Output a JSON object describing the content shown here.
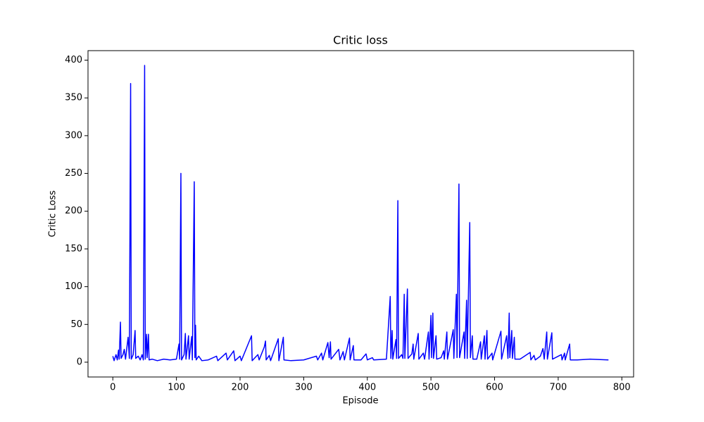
{
  "chart_data": {
    "type": "line",
    "title": "Critic loss",
    "xlabel": "Episode",
    "ylabel": "Critic Loss",
    "x": [
      0,
      2,
      5,
      7,
      9,
      10,
      12,
      13,
      16,
      18,
      20,
      24,
      26,
      28,
      29,
      32,
      35,
      36,
      40,
      43,
      46,
      48,
      50,
      51,
      53,
      54,
      56,
      57,
      62,
      70,
      80,
      90,
      100,
      104,
      105,
      107,
      108,
      112,
      114,
      115,
      119,
      120,
      124,
      125,
      128,
      129,
      130,
      131,
      135,
      140,
      150,
      163,
      165,
      178,
      180,
      190,
      192,
      200,
      202,
      218,
      219,
      228,
      230,
      238,
      240,
      241,
      246,
      248,
      260,
      261,
      268,
      269,
      280,
      300,
      320,
      322,
      328,
      330,
      338,
      340,
      342,
      343,
      355,
      357,
      362,
      364,
      372,
      373,
      378,
      379,
      390,
      398,
      400,
      408,
      410,
      430,
      436,
      437,
      439,
      440,
      445,
      446,
      448,
      449,
      454,
      456,
      458,
      459,
      463,
      464,
      470,
      472,
      473,
      480,
      481,
      488,
      490,
      496,
      497,
      500,
      501,
      503,
      504,
      508,
      509,
      516,
      520,
      521,
      525,
      526,
      535,
      536,
      540,
      541,
      544,
      545,
      552,
      553,
      556,
      557,
      561,
      562,
      565,
      566,
      572,
      578,
      579,
      584,
      585,
      588,
      589,
      596,
      597,
      610,
      611,
      619,
      621,
      623,
      624,
      627,
      628,
      631,
      632,
      640,
      656,
      657,
      662,
      664,
      672,
      676,
      678,
      682,
      683,
      690,
      691,
      705,
      706,
      710,
      711,
      718,
      719,
      730,
      750,
      779
    ],
    "series": [
      {
        "name": "Critic Loss",
        "color": "#0000ff",
        "values": [
          8,
          2,
          10,
          3,
          16,
          4,
          53,
          5,
          10,
          17,
          4,
          33,
          5,
          369,
          4,
          10,
          42,
          5,
          8,
          3,
          10,
          3,
          393,
          4,
          37,
          6,
          37,
          3,
          4,
          2,
          4,
          3,
          4,
          24,
          4,
          250,
          3,
          10,
          38,
          4,
          35,
          4,
          34,
          3,
          239,
          6,
          49,
          3,
          8,
          2,
          3,
          8,
          2,
          12,
          3,
          15,
          2,
          8,
          2,
          35,
          2,
          10,
          3,
          20,
          28,
          3,
          9,
          2,
          31,
          2,
          33,
          3,
          2,
          3,
          8,
          3,
          12,
          3,
          26,
          6,
          27,
          4,
          17,
          3,
          14,
          3,
          32,
          3,
          22,
          3,
          3,
          11,
          3,
          6,
          3,
          4,
          87,
          5,
          42,
          4,
          30,
          5,
          214,
          5,
          10,
          5,
          90,
          5,
          97,
          5,
          11,
          24,
          4,
          38,
          4,
          12,
          4,
          40,
          4,
          62,
          6,
          65,
          5,
          35,
          4,
          6,
          15,
          4,
          40,
          4,
          43,
          5,
          90,
          6,
          236,
          6,
          40,
          5,
          82,
          5,
          185,
          6,
          35,
          4,
          4,
          27,
          4,
          35,
          4,
          42,
          4,
          12,
          3,
          41,
          4,
          35,
          5,
          65,
          6,
          42,
          5,
          33,
          4,
          4,
          13,
          3,
          9,
          3,
          8,
          18,
          4,
          40,
          4,
          39,
          4,
          10,
          3,
          12,
          3,
          24,
          3,
          3,
          4,
          3
        ]
      }
    ],
    "xlim": [
      -39,
      818.5
    ],
    "ylim": [
      -19.6,
      412.6
    ],
    "xticks": [
      0,
      100,
      200,
      300,
      400,
      500,
      600,
      700,
      800
    ],
    "yticks": [
      0,
      50,
      100,
      150,
      200,
      250,
      300,
      350,
      400
    ],
    "grid": false
  }
}
